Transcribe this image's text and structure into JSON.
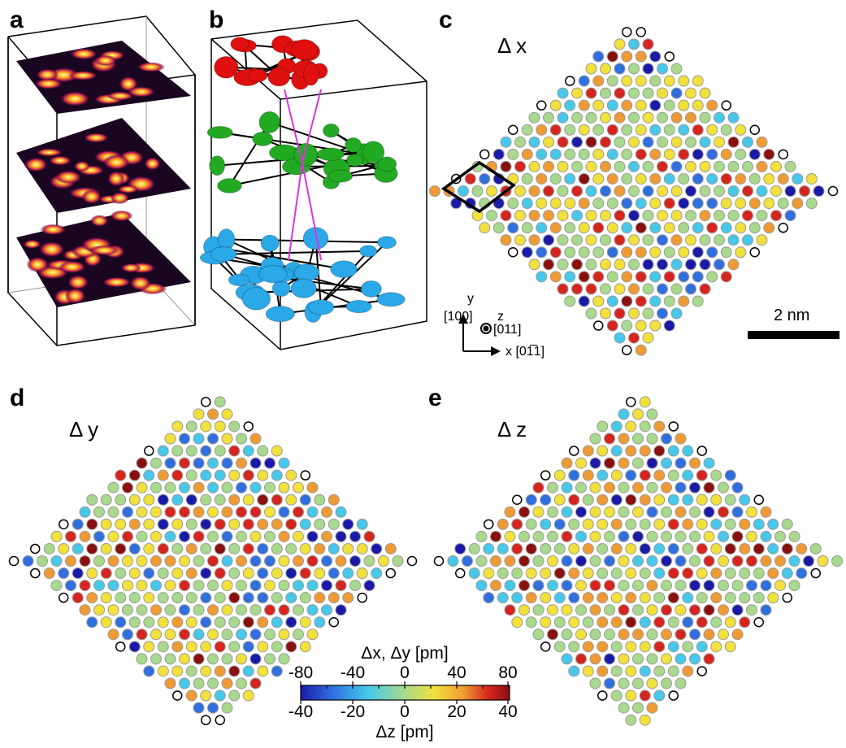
{
  "panels": {
    "a": {
      "letter": "a"
    },
    "b": {
      "letter": "b"
    },
    "c": {
      "letter": "c",
      "title": "Δ x"
    },
    "d": {
      "letter": "d",
      "title": "Δ y"
    },
    "e": {
      "letter": "e",
      "title": "Δ z"
    }
  },
  "axes": {
    "y": "y",
    "y_dir": "[100]",
    "z": "z",
    "z_dir": "[011]",
    "x_dir": "x [01̅1]"
  },
  "scale_bar": {
    "label": "2 nm"
  },
  "colorbar": {
    "top_label": "Δx, Δy [pm]",
    "top_ticks": [
      "-80",
      "-40",
      "0",
      "40",
      "80"
    ],
    "bottom_ticks": [
      "-40",
      "-20",
      "0",
      "20",
      "40"
    ],
    "bottom_label": "Δz [pm]",
    "colors": [
      "#1a1aa8",
      "#2f6fe0",
      "#45c8ea",
      "#a9d98c",
      "#f2e13a",
      "#f09a33",
      "#d6241e",
      "#8a0f0f"
    ]
  },
  "layer_colors": {
    "top": "#e01010",
    "middle": "#22aa22",
    "bottom": "#2aa8e8",
    "bonds": "#dd33dd"
  }
}
